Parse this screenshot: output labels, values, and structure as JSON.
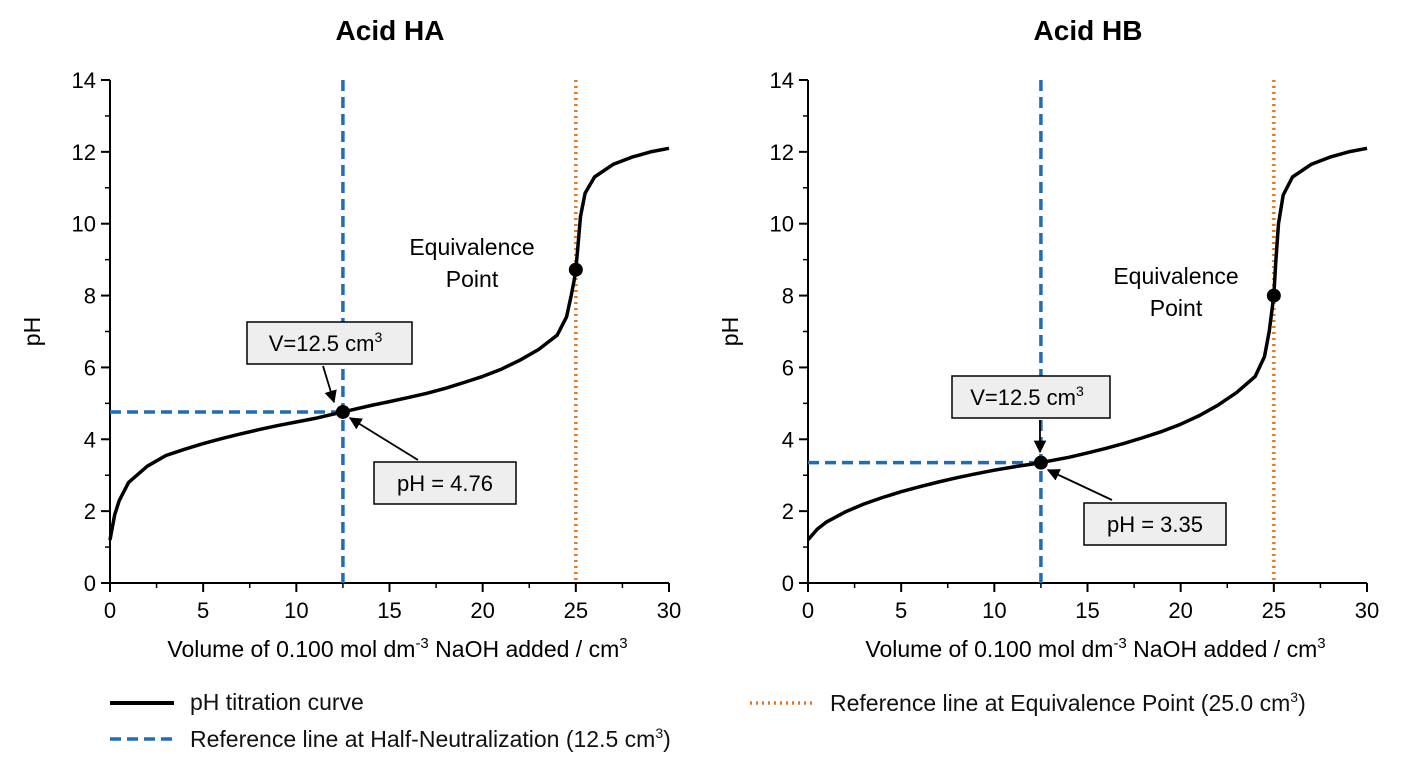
{
  "colors": {
    "curve": "#000000",
    "half_line": "#1f6db5",
    "equiv_line": "#e07a1f",
    "label_box_fill": "#eeeeee",
    "label_box_border": "#000000"
  },
  "chart_data": [
    {
      "type": "line",
      "title": "Acid HA",
      "xlabel": "Volume of 0.100 mol dm-3 NaOH added / cm3",
      "ylabel": "pH",
      "xlim": [
        0,
        30
      ],
      "ylim": [
        0,
        14
      ],
      "x_ticks": [
        0,
        5,
        10,
        15,
        20,
        25,
        30
      ],
      "y_ticks": [
        0,
        2,
        4,
        6,
        8,
        10,
        12,
        14
      ],
      "grid": false,
      "series": [
        {
          "name": "pH titration curve",
          "style": "solid",
          "x": [
            0,
            0.25,
            0.5,
            1,
            2,
            3,
            4,
            5,
            6,
            7,
            8,
            9,
            10,
            11,
            12,
            12.5,
            13,
            14,
            15,
            16,
            17,
            18,
            19,
            20,
            21,
            22,
            23,
            24,
            24.5,
            24.75,
            24.9,
            25,
            25.1,
            25.25,
            25.5,
            26,
            27,
            28,
            29,
            30
          ],
          "y": [
            1.2,
            1.9,
            2.3,
            2.8,
            3.25,
            3.55,
            3.72,
            3.88,
            4.02,
            4.15,
            4.27,
            4.38,
            4.48,
            4.58,
            4.7,
            4.76,
            4.82,
            4.94,
            5.05,
            5.16,
            5.28,
            5.42,
            5.58,
            5.75,
            5.95,
            6.2,
            6.5,
            6.9,
            7.4,
            8.0,
            8.4,
            8.72,
            9.3,
            10.2,
            10.85,
            11.3,
            11.65,
            11.85,
            12.0,
            12.1
          ]
        }
      ],
      "reference_lines": [
        {
          "name": "Reference line at Half-Neutralization (12.5 cm3)",
          "orientation": "vertical",
          "x": 12.5,
          "style": "dashed"
        },
        {
          "orientation": "horizontal",
          "y": 4.76,
          "x_range": [
            0,
            12.5
          ],
          "style": "dashed"
        },
        {
          "name": "Reference line at Equivalence Point (25.0 cm3)",
          "orientation": "vertical",
          "x": 25,
          "style": "dotted"
        }
      ],
      "points": [
        {
          "x": 12.5,
          "y": 4.76
        },
        {
          "x": 25,
          "y": 8.72
        }
      ],
      "annotations": {
        "volume_label": "V=12.5 cm",
        "volume_sup": "3",
        "ph_label": "pH = 4.76",
        "equivalence_line1": "Equivalence",
        "equivalence_line2": "Point"
      }
    },
    {
      "type": "line",
      "title": "Acid HB",
      "xlabel": "Volume of 0.100 mol dm-3 NaOH added / cm3",
      "ylabel": "pH",
      "xlim": [
        0,
        30
      ],
      "ylim": [
        0,
        14
      ],
      "x_ticks": [
        0,
        5,
        10,
        15,
        20,
        25,
        30
      ],
      "y_ticks": [
        0,
        2,
        4,
        6,
        8,
        10,
        12,
        14
      ],
      "grid": false,
      "series": [
        {
          "name": "pH titration curve",
          "style": "solid",
          "x": [
            0,
            0.5,
            1,
            2,
            3,
            4,
            5,
            6,
            7,
            8,
            9,
            10,
            11,
            12,
            12.5,
            13,
            14,
            15,
            16,
            17,
            18,
            19,
            20,
            21,
            22,
            23,
            24,
            24.5,
            24.75,
            24.9,
            25,
            25.1,
            25.25,
            25.5,
            26,
            27,
            28,
            29,
            30
          ],
          "y": [
            1.2,
            1.5,
            1.7,
            1.98,
            2.2,
            2.38,
            2.54,
            2.68,
            2.81,
            2.93,
            3.04,
            3.14,
            3.23,
            3.31,
            3.35,
            3.4,
            3.5,
            3.62,
            3.75,
            3.89,
            4.05,
            4.22,
            4.42,
            4.66,
            4.95,
            5.3,
            5.75,
            6.3,
            7.0,
            7.6,
            8.0,
            8.9,
            10.0,
            10.8,
            11.3,
            11.65,
            11.85,
            12.0,
            12.1
          ]
        }
      ],
      "reference_lines": [
        {
          "name": "Reference line at Half-Neutralization (12.5 cm3)",
          "orientation": "vertical",
          "x": 12.5,
          "style": "dashed"
        },
        {
          "orientation": "horizontal",
          "y": 3.35,
          "x_range": [
            0,
            12.5
          ],
          "style": "dashed"
        },
        {
          "name": "Reference line at Equivalence Point (25.0 cm3)",
          "orientation": "vertical",
          "x": 25,
          "style": "dotted"
        }
      ],
      "points": [
        {
          "x": 12.5,
          "y": 3.35
        },
        {
          "x": 25,
          "y": 8.0
        }
      ],
      "annotations": {
        "volume_label": "V=12.5 cm",
        "volume_sup": "3",
        "ph_label": "pH = 3.35",
        "equivalence_line1": "Equivalence",
        "equivalence_line2": "Point"
      }
    }
  ],
  "xlabel_parts": {
    "pre": "Volume of 0.100 mol dm",
    "sup1": "-3",
    "mid": " NaOH added / cm",
    "sup2": "3"
  },
  "legend": {
    "curve": "pH titration curve",
    "half_pre": "Reference line at Half-Neutralization (12.5 cm",
    "half_sup": "3",
    "half_post": ")",
    "equiv_pre": "Reference line at Equivalence Point (25.0 cm",
    "equiv_sup": "3",
    "equiv_post": ")"
  }
}
